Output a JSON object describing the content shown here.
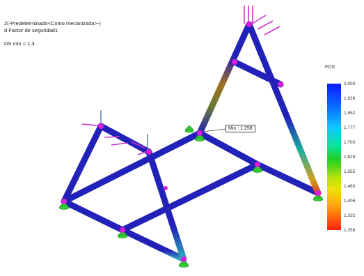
{
  "study": {
    "line1": "2(-Predeterminado<Como mecanizada>-)",
    "line2": "d Factor de seguridad1",
    "fds_min": "DS min = 1,3"
  },
  "legend": {
    "title": "FDS",
    "ticks": [
      "2,000",
      "1,926",
      "1,852",
      "1,777",
      "1,703",
      "1,629",
      "1,555",
      "1,480",
      "1,406",
      "1,332",
      "1,258"
    ],
    "colors": {
      "high": "#0a1cff",
      "low": "#ff2010"
    }
  },
  "probe": {
    "label": "Min : 1,258"
  },
  "colors": {
    "beam": "#2222b8",
    "joint": "#d81ed8",
    "load": "#cc33cc",
    "fixture": "#33cc33"
  }
}
